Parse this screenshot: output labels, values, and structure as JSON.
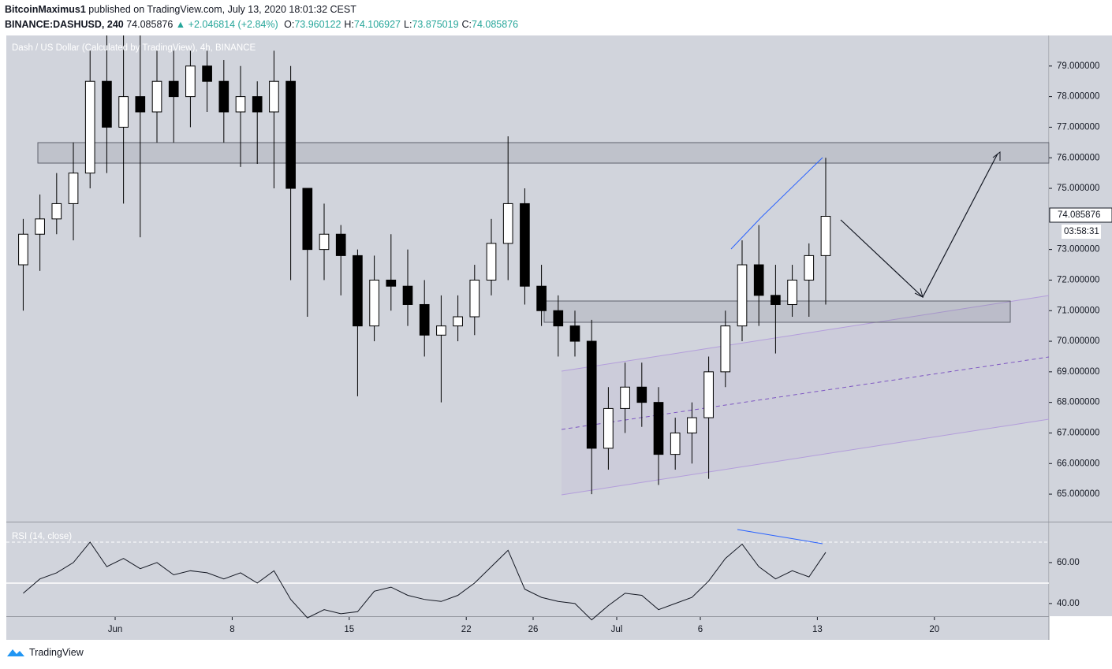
{
  "header": {
    "author": "BitcoinMaximus1",
    "published": "published on TradingView.com, July 13, 2020 18:01:32 CEST",
    "symbol": "BINANCE:DASHUSD, 240",
    "last": "74.085876",
    "change": "▲ +2.046814 (+2.84%)",
    "ohlc": [
      {
        "label": "O:",
        "value": "73.960122"
      },
      {
        "label": "H:",
        "value": "74.106927"
      },
      {
        "label": "L:",
        "value": "73.875019"
      },
      {
        "label": "C:",
        "value": "74.085876"
      }
    ]
  },
  "footer": {
    "brand": "TradingView"
  },
  "chart_data": [
    {
      "type": "candlestick",
      "title": "Dash / US Dollar (Calculated by TradingView), 4h, BINANCE",
      "x": [
        "2020-05-26",
        "2020-05-27",
        "2020-05-28",
        "2020-05-29",
        "2020-05-30",
        "2020-05-31",
        "2020-06-01",
        "2020-06-02",
        "2020-06-03",
        "2020-06-04",
        "2020-06-05",
        "2020-06-06",
        "2020-06-07",
        "2020-06-08",
        "2020-06-09",
        "2020-06-10",
        "2020-06-11",
        "2020-06-12",
        "2020-06-13",
        "2020-06-14",
        "2020-06-15",
        "2020-06-16",
        "2020-06-17",
        "2020-06-18",
        "2020-06-19",
        "2020-06-20",
        "2020-06-21",
        "2020-06-22",
        "2020-06-23",
        "2020-06-24",
        "2020-06-25",
        "2020-06-26",
        "2020-06-27",
        "2020-06-28",
        "2020-06-29",
        "2020-06-30",
        "2020-07-01",
        "2020-07-02",
        "2020-07-03",
        "2020-07-04",
        "2020-07-05",
        "2020-07-06",
        "2020-07-07",
        "2020-07-08",
        "2020-07-09",
        "2020-07-10",
        "2020-07-11",
        "2020-07-12",
        "2020-07-13"
      ],
      "open": [
        72.5,
        73.5,
        74,
        74.5,
        75.5,
        78.5,
        77,
        78,
        77.5,
        78.5,
        78,
        79,
        78.5,
        77.5,
        78,
        77.5,
        78.5,
        75,
        73,
        73.5,
        72.8,
        70.5,
        72,
        71.8,
        71.2,
        70.2,
        70.5,
        70.8,
        72,
        73.2,
        74.5,
        71.8,
        71,
        70.5,
        70,
        66.5,
        67.8,
        68.5,
        68,
        66.3,
        67,
        67.5,
        69,
        70.5,
        72.5,
        71.5,
        71.2,
        72,
        72.8
      ],
      "high": [
        74,
        74.8,
        75.5,
        76.5,
        79.5,
        80,
        80,
        80,
        79.5,
        79.5,
        79.5,
        79.5,
        79.2,
        79,
        78.5,
        79.5,
        79,
        75,
        74.5,
        73.8,
        73,
        72.8,
        73.5,
        73,
        72,
        71.5,
        71.5,
        72.5,
        74,
        76.7,
        75,
        72.5,
        71.5,
        71,
        70.7,
        68.5,
        69.3,
        69.3,
        68.5,
        67.5,
        68,
        69.5,
        71,
        73.3,
        73.8,
        72.5,
        72.5,
        73.2,
        76
      ],
      "low": [
        71,
        72.3,
        73.5,
        73.3,
        75,
        75.5,
        74.5,
        73.4,
        76.5,
        76.5,
        77,
        77.5,
        76.5,
        75.7,
        75.8,
        75,
        72,
        70.8,
        72,
        71.5,
        68.2,
        70,
        71,
        70.5,
        69.5,
        68,
        70,
        70.2,
        71.5,
        72,
        71.2,
        70.5,
        69.5,
        69.5,
        65,
        65.8,
        67,
        67.2,
        65.3,
        65.8,
        66,
        65.5,
        68.5,
        70,
        70.5,
        69.6,
        70.8,
        70.8,
        71.2
      ],
      "close": [
        73.5,
        74,
        74.5,
        75.5,
        78.5,
        77,
        78,
        77.5,
        78.5,
        78,
        79,
        78.5,
        77.5,
        78,
        77.5,
        78.5,
        75,
        73,
        73.5,
        72.8,
        70.5,
        72,
        71.8,
        71.2,
        70.2,
        70.5,
        70.8,
        72,
        73.2,
        74.5,
        71.8,
        71,
        70.5,
        70,
        66.5,
        67.8,
        68.5,
        68,
        66.3,
        67,
        67.5,
        69,
        70.5,
        72.5,
        71.5,
        71.2,
        72,
        72.8,
        74.085876
      ],
      "up_color": "#ffffff",
      "down_color": "#000000",
      "wick_color": "#000000",
      "countdown": "03:58:31",
      "xlim": [
        "2020-05-25T11:45",
        "2020-07-26T20:24"
      ],
      "xticks": [
        {
          "value": "2020-06-01",
          "label": "Jun"
        },
        {
          "value": "2020-06-08",
          "label": "8"
        },
        {
          "value": "2020-06-15",
          "label": "15"
        },
        {
          "value": "2020-06-22",
          "label": "22"
        },
        {
          "value": "2020-06-26",
          "label": "26"
        },
        {
          "value": "2020-07-01",
          "label": "Jul"
        },
        {
          "value": "2020-07-06",
          "label": "6"
        },
        {
          "value": "2020-07-13",
          "label": "13"
        },
        {
          "value": "2020-07-20",
          "label": "20"
        }
      ],
      "ylim": [
        64.1,
        80
      ],
      "yticks": [
        {
          "value": 65,
          "label": "65.000000"
        },
        {
          "value": 66,
          "label": "66.000000"
        },
        {
          "value": 67,
          "label": "67.000000"
        },
        {
          "value": 68,
          "label": "68.000000"
        },
        {
          "value": 69,
          "label": "69.000000"
        },
        {
          "value": 70,
          "label": "70.000000"
        },
        {
          "value": 71,
          "label": "71.000000"
        },
        {
          "value": 72,
          "label": "72.000000"
        },
        {
          "value": 73,
          "label": "73.000000"
        },
        {
          "value": 75,
          "label": "75.000000"
        },
        {
          "value": 76,
          "label": "76.000000"
        },
        {
          "value": 77,
          "label": "77.000000"
        },
        {
          "value": 78,
          "label": "78.000000"
        },
        {
          "value": 79,
          "label": "79.000000"
        }
      ]
    },
    {
      "type": "line",
      "title": "RSI (14, close)",
      "color": "#131722",
      "x": [
        "2020-05-26",
        "2020-05-27",
        "2020-05-28",
        "2020-05-29",
        "2020-05-30",
        "2020-05-31",
        "2020-06-01",
        "2020-06-02",
        "2020-06-03",
        "2020-06-04",
        "2020-06-05",
        "2020-06-06",
        "2020-06-07",
        "2020-06-08",
        "2020-06-09",
        "2020-06-10",
        "2020-06-11",
        "2020-06-12",
        "2020-06-13",
        "2020-06-14",
        "2020-06-15",
        "2020-06-16",
        "2020-06-17",
        "2020-06-18",
        "2020-06-19",
        "2020-06-20",
        "2020-06-21",
        "2020-06-22",
        "2020-06-23",
        "2020-06-24",
        "2020-06-25",
        "2020-06-26",
        "2020-06-27",
        "2020-06-28",
        "2020-06-29",
        "2020-06-30",
        "2020-07-01",
        "2020-07-02",
        "2020-07-03",
        "2020-07-04",
        "2020-07-05",
        "2020-07-06",
        "2020-07-07",
        "2020-07-08",
        "2020-07-09",
        "2020-07-10",
        "2020-07-11",
        "2020-07-12",
        "2020-07-13"
      ],
      "values": [
        45,
        52,
        55,
        60,
        70,
        58,
        62,
        57,
        60,
        54,
        56,
        55,
        52,
        55,
        50,
        56,
        42,
        33,
        37,
        35,
        36,
        46,
        48,
        44,
        42,
        41,
        44,
        50,
        58,
        66,
        47,
        43,
        41,
        40,
        32,
        39,
        45,
        44,
        37,
        40,
        43,
        51,
        62,
        69,
        58,
        52,
        56,
        53,
        65
      ],
      "ylim": [
        33.8,
        79.6
      ],
      "yticks": [
        {
          "value": 40,
          "label": "40.00"
        },
        {
          "value": 60,
          "label": "60.00"
        }
      ]
    }
  ]
}
